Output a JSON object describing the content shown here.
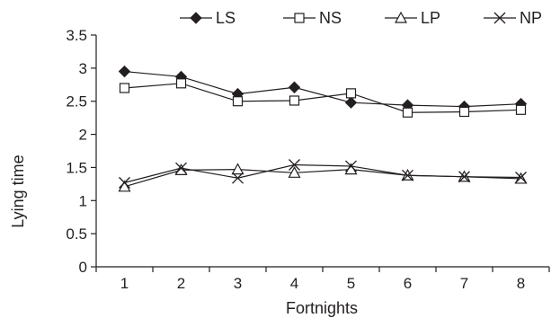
{
  "chart_data": {
    "type": "line",
    "xlabel": "Fortnights",
    "ylabel": "Lying time",
    "categories": [
      "1",
      "2",
      "3",
      "4",
      "5",
      "6",
      "7",
      "8"
    ],
    "ylim": [
      0,
      3.5
    ],
    "yticks": [
      "0",
      "0.5",
      "1",
      "1.5",
      "2",
      "2.5",
      "3",
      "3.5"
    ],
    "grid": false,
    "legend_position": "top",
    "series": [
      {
        "name": "LS",
        "marker": "filled-diamond",
        "color": "#231f20",
        "values": [
          2.95,
          2.87,
          2.61,
          2.71,
          2.48,
          2.44,
          2.42,
          2.46
        ]
      },
      {
        "name": "NS",
        "marker": "open-square",
        "color": "#231f20",
        "values": [
          2.7,
          2.77,
          2.5,
          2.51,
          2.62,
          2.33,
          2.34,
          2.37
        ]
      },
      {
        "name": "LP",
        "marker": "open-triangle",
        "color": "#231f20",
        "values": [
          1.21,
          1.46,
          1.47,
          1.42,
          1.47,
          1.38,
          1.36,
          1.33
        ]
      },
      {
        "name": "NP",
        "marker": "x-cross",
        "color": "#231f20",
        "values": [
          1.27,
          1.49,
          1.34,
          1.54,
          1.52,
          1.38,
          1.36,
          1.35
        ]
      }
    ]
  }
}
